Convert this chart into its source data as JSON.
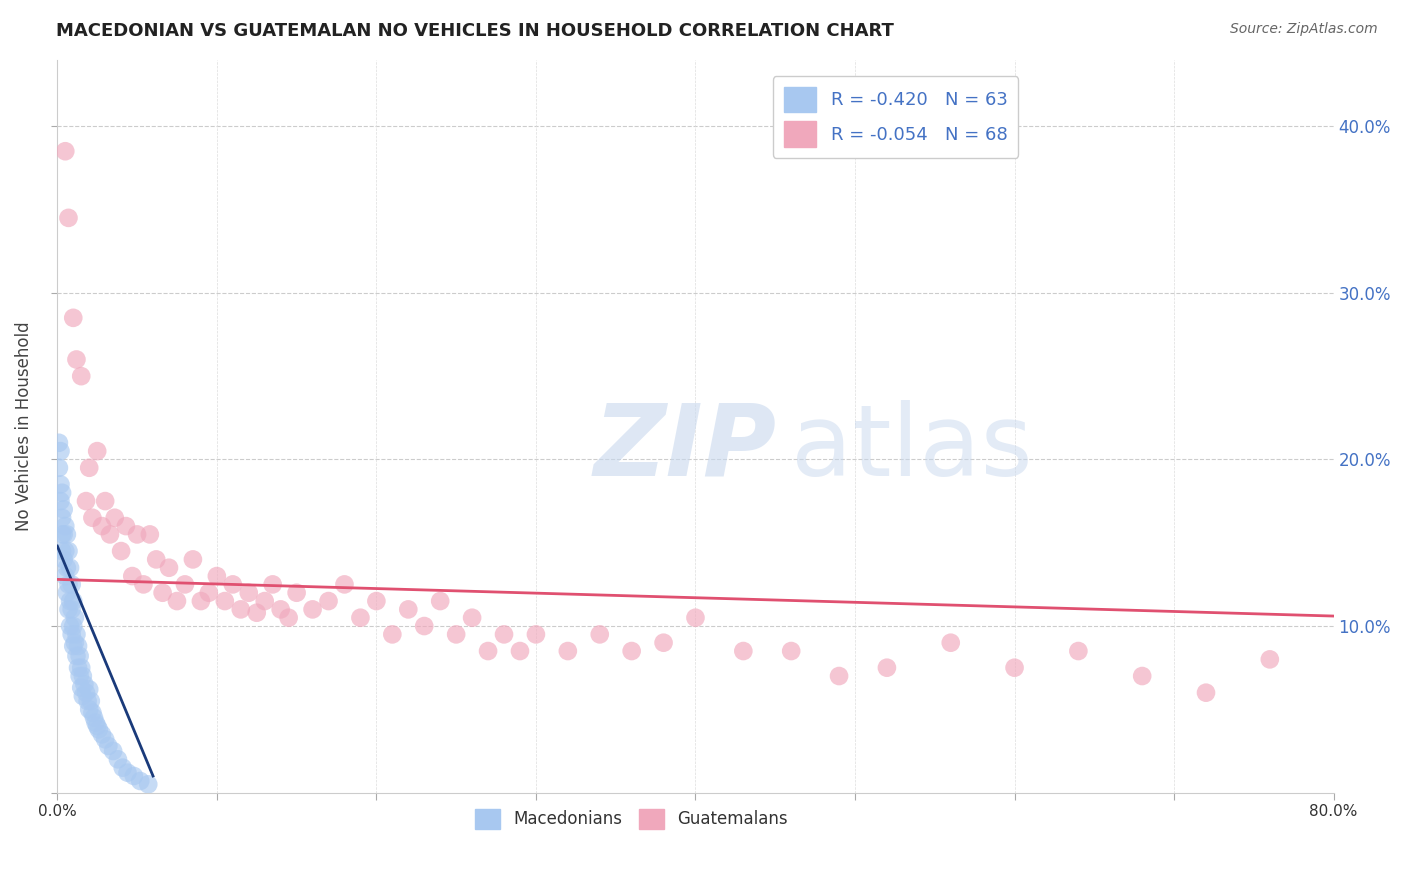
{
  "title": "MACEDONIAN VS GUATEMALAN NO VEHICLES IN HOUSEHOLD CORRELATION CHART",
  "source": "Source: ZipAtlas.com",
  "ylabel": "No Vehicles in Household",
  "xlim": [
    0.0,
    0.8
  ],
  "ylim": [
    0.0,
    0.44
  ],
  "xticks": [
    0.0,
    0.1,
    0.2,
    0.3,
    0.4,
    0.5,
    0.6,
    0.7,
    0.8
  ],
  "yticks": [
    0.0,
    0.1,
    0.2,
    0.3,
    0.4
  ],
  "macedonian_R": -0.42,
  "macedonian_N": 63,
  "guatemalan_R": -0.054,
  "guatemalan_N": 68,
  "macedonian_color": "#A8C8F0",
  "guatemalan_color": "#F0A8BC",
  "macedonian_line_color": "#1A3A7A",
  "guatemalan_line_color": "#E05070",
  "background_color": "#FFFFFF",
  "macedonian_x": [
    0.001,
    0.001,
    0.002,
    0.002,
    0.002,
    0.003,
    0.003,
    0.003,
    0.003,
    0.004,
    0.004,
    0.004,
    0.005,
    0.005,
    0.005,
    0.006,
    0.006,
    0.006,
    0.007,
    0.007,
    0.007,
    0.008,
    0.008,
    0.008,
    0.009,
    0.009,
    0.009,
    0.01,
    0.01,
    0.01,
    0.011,
    0.011,
    0.012,
    0.012,
    0.013,
    0.013,
    0.014,
    0.014,
    0.015,
    0.015,
    0.016,
    0.016,
    0.017,
    0.018,
    0.019,
    0.02,
    0.02,
    0.021,
    0.022,
    0.023,
    0.024,
    0.025,
    0.026,
    0.028,
    0.03,
    0.032,
    0.035,
    0.038,
    0.041,
    0.044,
    0.048,
    0.052,
    0.057
  ],
  "macedonian_y": [
    0.21,
    0.195,
    0.205,
    0.185,
    0.175,
    0.165,
    0.18,
    0.155,
    0.145,
    0.17,
    0.155,
    0.14,
    0.16,
    0.145,
    0.13,
    0.155,
    0.135,
    0.12,
    0.145,
    0.125,
    0.11,
    0.135,
    0.115,
    0.1,
    0.125,
    0.11,
    0.095,
    0.115,
    0.1,
    0.088,
    0.105,
    0.09,
    0.095,
    0.082,
    0.088,
    0.075,
    0.082,
    0.07,
    0.075,
    0.063,
    0.07,
    0.058,
    0.065,
    0.06,
    0.055,
    0.062,
    0.05,
    0.055,
    0.048,
    0.045,
    0.042,
    0.04,
    0.038,
    0.035,
    0.032,
    0.028,
    0.025,
    0.02,
    0.015,
    0.012,
    0.01,
    0.007,
    0.005
  ],
  "guatemalan_x": [
    0.005,
    0.007,
    0.01,
    0.012,
    0.015,
    0.018,
    0.02,
    0.022,
    0.025,
    0.028,
    0.03,
    0.033,
    0.036,
    0.04,
    0.043,
    0.047,
    0.05,
    0.054,
    0.058,
    0.062,
    0.066,
    0.07,
    0.075,
    0.08,
    0.085,
    0.09,
    0.095,
    0.1,
    0.105,
    0.11,
    0.115,
    0.12,
    0.125,
    0.13,
    0.135,
    0.14,
    0.145,
    0.15,
    0.16,
    0.17,
    0.18,
    0.19,
    0.2,
    0.21,
    0.22,
    0.23,
    0.24,
    0.25,
    0.26,
    0.27,
    0.28,
    0.29,
    0.3,
    0.32,
    0.34,
    0.36,
    0.38,
    0.4,
    0.43,
    0.46,
    0.49,
    0.52,
    0.56,
    0.6,
    0.64,
    0.68,
    0.72,
    0.76
  ],
  "guatemalan_y": [
    0.385,
    0.345,
    0.285,
    0.26,
    0.25,
    0.175,
    0.195,
    0.165,
    0.205,
    0.16,
    0.175,
    0.155,
    0.165,
    0.145,
    0.16,
    0.13,
    0.155,
    0.125,
    0.155,
    0.14,
    0.12,
    0.135,
    0.115,
    0.125,
    0.14,
    0.115,
    0.12,
    0.13,
    0.115,
    0.125,
    0.11,
    0.12,
    0.108,
    0.115,
    0.125,
    0.11,
    0.105,
    0.12,
    0.11,
    0.115,
    0.125,
    0.105,
    0.115,
    0.095,
    0.11,
    0.1,
    0.115,
    0.095,
    0.105,
    0.085,
    0.095,
    0.085,
    0.095,
    0.085,
    0.095,
    0.085,
    0.09,
    0.105,
    0.085,
    0.085,
    0.07,
    0.075,
    0.09,
    0.075,
    0.085,
    0.07,
    0.06,
    0.08
  ],
  "mac_trendline_x": [
    0.0,
    0.06
  ],
  "mac_trendline_y": [
    0.148,
    0.01
  ],
  "gua_trendline_x": [
    0.0,
    0.8
  ],
  "gua_trendline_y": [
    0.128,
    0.106
  ]
}
